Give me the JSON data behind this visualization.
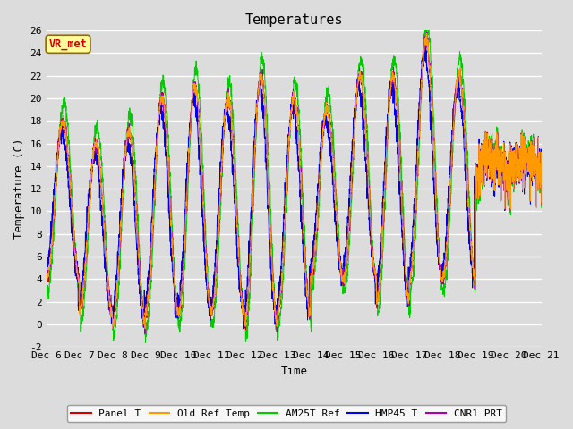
{
  "title": "Temperatures",
  "xlabel": "Time",
  "ylabel": "Temperature (C)",
  "ylim": [
    -2,
    26
  ],
  "yticks": [
    -2,
    0,
    2,
    4,
    6,
    8,
    10,
    12,
    14,
    16,
    18,
    20,
    22,
    24,
    26
  ],
  "xlim_start": 0,
  "xlim_end": 15,
  "xtick_labels": [
    "Dec 6",
    "Dec 7",
    "Dec 8",
    "Dec 9",
    "Dec 10",
    "Dec 11",
    "Dec 12",
    "Dec 13",
    "Dec 14",
    "Dec 15",
    "Dec 16",
    "Dec 17",
    "Dec 18",
    "Dec 19",
    "Dec 20",
    "Dec 21"
  ],
  "background_color": "#dcdcdc",
  "plot_bg_color": "#dcdcdc",
  "colors": {
    "Panel T": "#cc0000",
    "Old Ref Temp": "#ff9900",
    "AM25T Ref": "#00cc00",
    "HMP45 T": "#0000ee",
    "CNR1 PRT": "#aa00aa"
  },
  "legend_label": "VR_met",
  "legend_box_color": "#ffff99",
  "legend_text_color": "#cc0000",
  "n_points": 3000,
  "days": 15,
  "title_fontsize": 11,
  "axis_label_fontsize": 9,
  "tick_fontsize": 8
}
